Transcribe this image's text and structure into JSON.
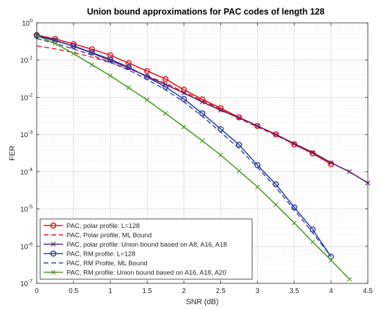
{
  "chart_data": {
    "type": "line",
    "title": "Union bound approximations for PAC codes of length 128",
    "xlabel": "SNR (dB)",
    "ylabel": "FER",
    "x_scale": "linear",
    "y_scale": "log",
    "xlim": [
      0,
      4.5
    ],
    "ylim": [
      1e-07,
      1
    ],
    "xticks": [
      0,
      0.5,
      1,
      1.5,
      2,
      2.5,
      3,
      3.5,
      4,
      4.5
    ],
    "xtick_labels": [
      "0",
      "0.5",
      "1",
      "1.5",
      "2",
      "2.5",
      "3",
      "3.5",
      "4",
      "4.5"
    ],
    "ytick_exponents": [
      -7,
      -6,
      -5,
      -4,
      -3,
      -2,
      -1,
      0
    ],
    "ytick_base": "10",
    "grid": true,
    "legend_position": "bottom-left",
    "series": [
      {
        "name": "PAC, polar profile: L=128",
        "color": "#e8121c",
        "style": "solid",
        "marker": "circle",
        "x": [
          0,
          0.25,
          0.5,
          0.75,
          1,
          1.25,
          1.5,
          1.75,
          2,
          2.25,
          2.5,
          2.75,
          3,
          3.25,
          3.5,
          3.75,
          4
        ],
        "y": [
          0.47,
          0.37,
          0.27,
          0.195,
          0.135,
          0.083,
          0.051,
          0.031,
          0.016,
          0.0088,
          0.0051,
          0.0029,
          0.0017,
          0.00101,
          0.00054,
          0.00031,
          0.00016
        ]
      },
      {
        "name": "PAC, Polar profile, ML Bound",
        "color": "#e8121c",
        "style": "dashed",
        "marker": "none",
        "x": [
          0,
          0.25,
          0.5,
          0.75,
          1,
          1.25,
          1.5,
          1.75,
          2,
          2.25,
          2.5,
          2.75,
          3,
          3.25,
          3.5,
          3.75,
          4
        ],
        "y": [
          0.24,
          0.2,
          0.16,
          0.12,
          0.085,
          0.058,
          0.038,
          0.024,
          0.014,
          0.0082,
          0.0047,
          0.0027,
          0.0016,
          0.00095,
          0.00055,
          0.00032,
          0.00016
        ]
      },
      {
        "name": "PAC, polar profile: Union bound based on A8, A16, A18",
        "color": "#5e1c66",
        "style": "solid",
        "marker": "x",
        "x": [
          0,
          0.25,
          0.5,
          0.75,
          1,
          1.25,
          1.5,
          1.75,
          2,
          2.25,
          2.5,
          2.75,
          3,
          3.25,
          3.5,
          3.75,
          4,
          4.25,
          4.5
        ],
        "y": [
          0.47,
          0.34,
          0.235,
          0.155,
          0.098,
          0.062,
          0.036,
          0.022,
          0.013,
          0.0075,
          0.0045,
          0.0028,
          0.0017,
          0.001,
          0.00057,
          0.00033,
          0.000175,
          0.0001,
          5e-05
        ]
      },
      {
        "name": "PAC, RM profile: L=128",
        "color": "#2c3fa3",
        "style": "solid",
        "marker": "circle",
        "x": [
          0,
          0.25,
          0.5,
          0.75,
          1,
          1.25,
          1.5,
          1.75,
          2,
          2.25,
          2.5,
          2.75,
          3,
          3.25,
          3.5,
          3.75,
          4
        ],
        "y": [
          0.45,
          0.33,
          0.24,
          0.16,
          0.105,
          0.065,
          0.035,
          0.019,
          0.009,
          0.0037,
          0.0014,
          0.00053,
          0.00015,
          4.6e-05,
          1.1e-05,
          2.8e-06,
          5.2e-07
        ]
      },
      {
        "name": "PAC, RM Profile, ML Bound",
        "color": "#2c3fa3",
        "style": "dashed",
        "marker": "none",
        "x": [
          0,
          0.25,
          0.5,
          0.75,
          1,
          1.25,
          1.5,
          1.75,
          2,
          2.25,
          2.5,
          2.75,
          3,
          3.25,
          3.5,
          3.75,
          4
        ],
        "y": [
          0.38,
          0.28,
          0.2,
          0.135,
          0.087,
          0.054,
          0.03,
          0.016,
          0.0075,
          0.0031,
          0.00115,
          0.00042,
          0.00013,
          3.8e-05,
          9.5e-06,
          2.3e-06,
          5.2e-07
        ]
      },
      {
        "name": "PAC, RM profile: Union bound based on A16, A18, A20",
        "color": "#4e9a2a",
        "style": "solid",
        "marker": "x",
        "x": [
          0,
          0.25,
          0.5,
          0.75,
          1,
          1.25,
          1.5,
          1.75,
          2,
          2.25,
          2.5,
          2.75,
          3,
          3.25,
          3.5,
          3.75,
          4,
          4.25
        ],
        "y": [
          0.45,
          0.28,
          0.15,
          0.075,
          0.038,
          0.018,
          0.0085,
          0.0037,
          0.0016,
          0.00068,
          0.00028,
          0.000105,
          3.9e-05,
          1.3e-05,
          4.2e-06,
          1.3e-06,
          4.2e-07,
          1.3e-07
        ]
      }
    ]
  }
}
